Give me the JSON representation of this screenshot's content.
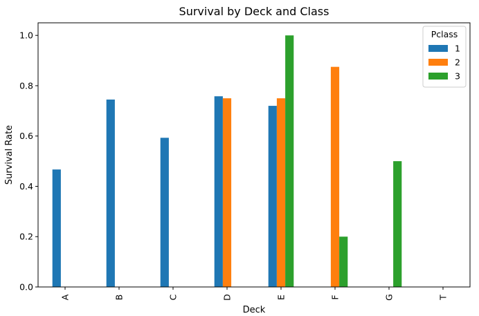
{
  "chart_data": {
    "type": "bar",
    "title": "Survival by Deck and Class",
    "xlabel": "Deck",
    "ylabel": "Survival Rate",
    "categories": [
      "A",
      "B",
      "C",
      "D",
      "E",
      "F",
      "G",
      "T"
    ],
    "ylim": [
      0,
      1.05
    ],
    "yticks": [
      0.0,
      0.2,
      0.4,
      0.6,
      0.8,
      1.0
    ],
    "ytick_labels": [
      "0.0",
      "0.2",
      "0.4",
      "0.6",
      "0.8",
      "1.0"
    ],
    "legend_title": "Pclass",
    "legend_position": "top-right",
    "grid": false,
    "series": [
      {
        "name": "1",
        "color": "#1f77b4",
        "values": [
          0.467,
          0.745,
          0.593,
          0.758,
          0.72,
          null,
          null,
          0.0
        ]
      },
      {
        "name": "2",
        "color": "#ff7f0e",
        "values": [
          null,
          null,
          null,
          0.75,
          0.75,
          0.875,
          null,
          null
        ]
      },
      {
        "name": "3",
        "color": "#2ca02c",
        "values": [
          null,
          null,
          null,
          null,
          1.0,
          0.2,
          0.5,
          null
        ]
      }
    ]
  }
}
